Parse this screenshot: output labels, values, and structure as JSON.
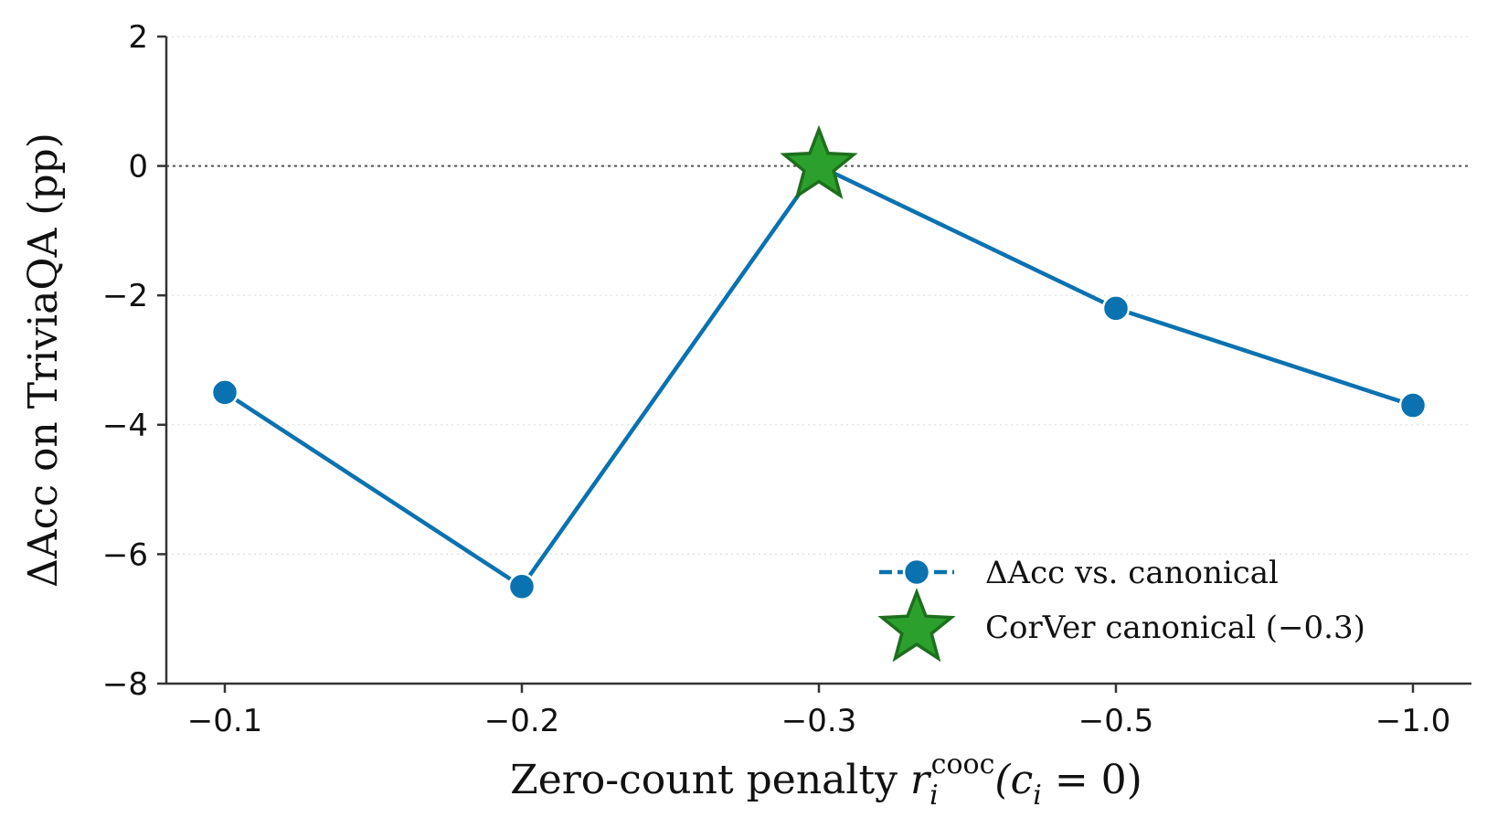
{
  "chart_data": {
    "type": "line",
    "categories": [
      "−0.1",
      "−0.2",
      "−0.3",
      "−0.5",
      "−1.0"
    ],
    "series": [
      {
        "name": "ΔAcc vs. canonical",
        "values": [
          -3.5,
          -6.5,
          0.0,
          -2.2,
          -3.7
        ],
        "color": "#0a72b0",
        "marker": "circle"
      }
    ],
    "highlight": {
      "name": "CorVer canonical (−0.3)",
      "category": "−0.3",
      "value": 0.0,
      "color": "#2ca02c",
      "edge_color": "#1d6f1d",
      "marker": "star"
    },
    "xlabel": {
      "prefix": "Zero-count penalty ",
      "symbol": "r",
      "subscript": "i",
      "superscript": "cooc",
      "argument": "(c",
      "argument_subscript": "i",
      "argument_tail": " = 0)"
    },
    "ylabel": "ΔAcc on TriviaQA (pp)",
    "ylim": [
      -8,
      2
    ],
    "yticks": [
      2,
      0,
      -2,
      -4,
      -6,
      -8
    ],
    "ytick_labels": [
      "2",
      "0",
      "−2",
      "−4",
      "−6",
      "−8"
    ],
    "reference_line": 0,
    "grid": "horizontal dotted",
    "legend_position": "lower-right"
  }
}
